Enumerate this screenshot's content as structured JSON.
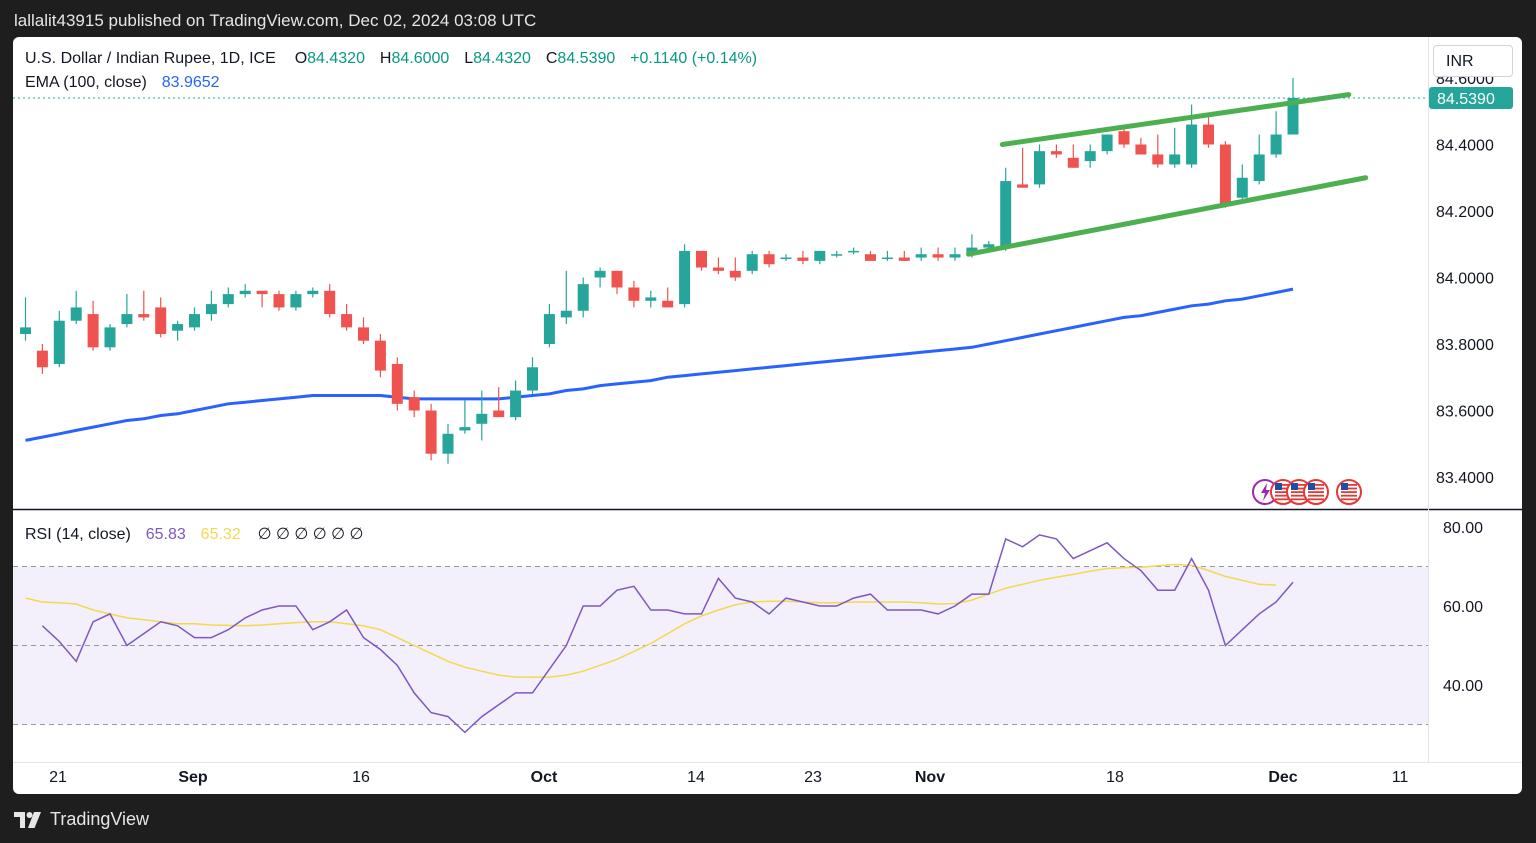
{
  "publisher_line": "lallalit43915 published on TradingView.com, Dec 02, 2024 03:08 UTC",
  "brand": "TradingView",
  "currency_button": "INR",
  "colors": {
    "up": "#26a69a",
    "down": "#ef5350",
    "ema": "#2962ff",
    "channel": "#4caf50",
    "rsi": "#7e57c2",
    "rsi_ma": "#f2d94e",
    "rsi_band": "#f3f0fb"
  },
  "legend": {
    "symbol": "U.S. Dollar / Indian Rupee, 1D, ICE",
    "o_label": "O",
    "o_value": "84.4320",
    "h_label": "H",
    "h_value": "84.6000",
    "l_label": "L",
    "l_value": "84.4320",
    "c_label": "C",
    "c_value": "84.5390",
    "change": "+0.1140 (+0.14%)",
    "ema_label": "EMA (100, close)",
    "ema_value": "83.9652"
  },
  "rsi_legend": {
    "label": "RSI (14, close)",
    "value": "65.83",
    "ma_value": "65.32",
    "extras": "∅ ∅ ∅ ∅ ∅ ∅"
  },
  "chart_data": [
    {
      "type": "candlestick",
      "title": "U.S. Dollar / Indian Rupee, 1D, ICE",
      "ylim": [
        83.35,
        84.67
      ],
      "y_ticks": [
        "84.6000",
        "84.4000",
        "84.2000",
        "84.0000",
        "83.8000",
        "83.6000",
        "83.4000"
      ],
      "last_price_label": "84.5390",
      "x_ticks": [
        "21",
        "Sep",
        "16",
        "Oct",
        "14",
        "23",
        "Nov",
        "18",
        "Dec",
        "11"
      ],
      "candles": [
        {
          "o": 83.83,
          "h": 83.94,
          "l": 83.81,
          "c": 83.85
        },
        {
          "o": 83.78,
          "h": 83.8,
          "l": 83.71,
          "c": 83.73
        },
        {
          "o": 83.74,
          "h": 83.9,
          "l": 83.73,
          "c": 83.87
        },
        {
          "o": 83.87,
          "h": 83.96,
          "l": 83.86,
          "c": 83.91
        },
        {
          "o": 83.89,
          "h": 83.93,
          "l": 83.78,
          "c": 83.79
        },
        {
          "o": 83.79,
          "h": 83.86,
          "l": 83.78,
          "c": 83.85
        },
        {
          "o": 83.86,
          "h": 83.95,
          "l": 83.85,
          "c": 83.89
        },
        {
          "o": 83.89,
          "h": 83.96,
          "l": 83.87,
          "c": 83.88
        },
        {
          "o": 83.91,
          "h": 83.94,
          "l": 83.82,
          "c": 83.83
        },
        {
          "o": 83.84,
          "h": 83.87,
          "l": 83.81,
          "c": 83.86
        },
        {
          "o": 83.85,
          "h": 83.91,
          "l": 83.84,
          "c": 83.89
        },
        {
          "o": 83.89,
          "h": 83.96,
          "l": 83.87,
          "c": 83.92
        },
        {
          "o": 83.92,
          "h": 83.97,
          "l": 83.91,
          "c": 83.95
        },
        {
          "o": 83.95,
          "h": 83.98,
          "l": 83.94,
          "c": 83.96
        },
        {
          "o": 83.96,
          "h": 83.96,
          "l": 83.91,
          "c": 83.95
        },
        {
          "o": 83.95,
          "h": 83.96,
          "l": 83.9,
          "c": 83.91
        },
        {
          "o": 83.91,
          "h": 83.96,
          "l": 83.9,
          "c": 83.95
        },
        {
          "o": 83.95,
          "h": 83.97,
          "l": 83.94,
          "c": 83.96
        },
        {
          "o": 83.96,
          "h": 83.98,
          "l": 83.88,
          "c": 83.89
        },
        {
          "o": 83.89,
          "h": 83.92,
          "l": 83.84,
          "c": 83.85
        },
        {
          "o": 83.85,
          "h": 83.88,
          "l": 83.8,
          "c": 83.81
        },
        {
          "o": 83.81,
          "h": 83.83,
          "l": 83.7,
          "c": 83.72
        },
        {
          "o": 83.74,
          "h": 83.76,
          "l": 83.6,
          "c": 83.62
        },
        {
          "o": 83.64,
          "h": 83.66,
          "l": 83.58,
          "c": 83.6
        },
        {
          "o": 83.6,
          "h": 83.62,
          "l": 83.45,
          "c": 83.47
        },
        {
          "o": 83.47,
          "h": 83.56,
          "l": 83.44,
          "c": 83.53
        },
        {
          "o": 83.54,
          "h": 83.63,
          "l": 83.53,
          "c": 83.55
        },
        {
          "o": 83.56,
          "h": 83.66,
          "l": 83.51,
          "c": 83.59
        },
        {
          "o": 83.6,
          "h": 83.67,
          "l": 83.58,
          "c": 83.58
        },
        {
          "o": 83.58,
          "h": 83.69,
          "l": 83.57,
          "c": 83.66
        },
        {
          "o": 83.66,
          "h": 83.76,
          "l": 83.65,
          "c": 83.73
        },
        {
          "o": 83.8,
          "h": 83.92,
          "l": 83.79,
          "c": 83.89
        },
        {
          "o": 83.88,
          "h": 84.02,
          "l": 83.86,
          "c": 83.9
        },
        {
          "o": 83.9,
          "h": 84.0,
          "l": 83.88,
          "c": 83.98
        },
        {
          "o": 84.0,
          "h": 84.03,
          "l": 83.97,
          "c": 84.02
        },
        {
          "o": 84.02,
          "h": 84.02,
          "l": 83.95,
          "c": 83.97
        },
        {
          "o": 83.97,
          "h": 83.99,
          "l": 83.91,
          "c": 83.93
        },
        {
          "o": 83.93,
          "h": 83.96,
          "l": 83.91,
          "c": 83.94
        },
        {
          "o": 83.93,
          "h": 83.97,
          "l": 83.91,
          "c": 83.91
        },
        {
          "o": 83.92,
          "h": 84.1,
          "l": 83.91,
          "c": 84.08
        },
        {
          "o": 84.08,
          "h": 84.08,
          "l": 84.02,
          "c": 84.03
        },
        {
          "o": 84.03,
          "h": 84.06,
          "l": 84.01,
          "c": 84.02
        },
        {
          "o": 84.02,
          "h": 84.06,
          "l": 83.99,
          "c": 84.0
        },
        {
          "o": 84.02,
          "h": 84.08,
          "l": 84.01,
          "c": 84.07
        },
        {
          "o": 84.07,
          "h": 84.08,
          "l": 84.03,
          "c": 84.04
        },
        {
          "o": 84.06,
          "h": 84.07,
          "l": 84.05,
          "c": 84.06
        },
        {
          "o": 84.06,
          "h": 84.08,
          "l": 84.04,
          "c": 84.05
        },
        {
          "o": 84.05,
          "h": 84.08,
          "l": 84.04,
          "c": 84.08
        },
        {
          "o": 84.07,
          "h": 84.08,
          "l": 84.06,
          "c": 84.07
        },
        {
          "o": 84.08,
          "h": 84.09,
          "l": 84.07,
          "c": 84.08
        },
        {
          "o": 84.07,
          "h": 84.08,
          "l": 84.05,
          "c": 84.05
        },
        {
          "o": 84.06,
          "h": 84.08,
          "l": 84.05,
          "c": 84.06
        },
        {
          "o": 84.06,
          "h": 84.08,
          "l": 84.05,
          "c": 84.05
        },
        {
          "o": 84.06,
          "h": 84.09,
          "l": 84.05,
          "c": 84.07
        },
        {
          "o": 84.07,
          "h": 84.09,
          "l": 84.05,
          "c": 84.06
        },
        {
          "o": 84.06,
          "h": 84.09,
          "l": 84.05,
          "c": 84.07
        },
        {
          "o": 84.07,
          "h": 84.13,
          "l": 84.06,
          "c": 84.09
        },
        {
          "o": 84.09,
          "h": 84.11,
          "l": 84.08,
          "c": 84.1
        },
        {
          "o": 84.09,
          "h": 84.33,
          "l": 84.08,
          "c": 84.29
        },
        {
          "o": 84.28,
          "h": 84.39,
          "l": 84.27,
          "c": 84.27
        },
        {
          "o": 84.28,
          "h": 84.4,
          "l": 84.27,
          "c": 84.38
        },
        {
          "o": 84.38,
          "h": 84.4,
          "l": 84.36,
          "c": 84.37
        },
        {
          "o": 84.36,
          "h": 84.4,
          "l": 84.33,
          "c": 84.33
        },
        {
          "o": 84.35,
          "h": 84.4,
          "l": 84.33,
          "c": 84.38
        },
        {
          "o": 84.38,
          "h": 84.43,
          "l": 84.37,
          "c": 84.43
        },
        {
          "o": 84.44,
          "h": 84.45,
          "l": 84.39,
          "c": 84.4
        },
        {
          "o": 84.4,
          "h": 84.42,
          "l": 84.37,
          "c": 84.37
        },
        {
          "o": 84.37,
          "h": 84.43,
          "l": 84.33,
          "c": 84.34
        },
        {
          "o": 84.34,
          "h": 84.45,
          "l": 84.33,
          "c": 84.37
        },
        {
          "o": 84.34,
          "h": 84.52,
          "l": 84.33,
          "c": 84.46
        },
        {
          "o": 84.46,
          "h": 84.49,
          "l": 84.39,
          "c": 84.4
        },
        {
          "o": 84.4,
          "h": 84.41,
          "l": 84.21,
          "c": 84.22
        },
        {
          "o": 84.24,
          "h": 84.34,
          "l": 84.23,
          "c": 84.3
        },
        {
          "o": 84.29,
          "h": 84.43,
          "l": 84.28,
          "c": 84.37
        },
        {
          "o": 84.37,
          "h": 84.5,
          "l": 84.36,
          "c": 84.43
        },
        {
          "o": 84.43,
          "h": 84.6,
          "l": 84.43,
          "c": 84.54
        }
      ],
      "ema_100": [
        83.51,
        83.52,
        83.53,
        83.54,
        83.55,
        83.56,
        83.57,
        83.575,
        83.585,
        83.59,
        83.6,
        83.61,
        83.62,
        83.625,
        83.63,
        83.635,
        83.64,
        83.645,
        83.645,
        83.645,
        83.645,
        83.645,
        83.64,
        83.635,
        83.635,
        83.635,
        83.635,
        83.635,
        83.635,
        83.64,
        83.645,
        83.65,
        83.66,
        83.665,
        83.675,
        83.68,
        83.685,
        83.69,
        83.7,
        83.705,
        83.71,
        83.715,
        83.72,
        83.725,
        83.73,
        83.735,
        83.74,
        83.745,
        83.75,
        83.755,
        83.76,
        83.765,
        83.77,
        83.775,
        83.78,
        83.785,
        83.79,
        83.8,
        83.81,
        83.82,
        83.83,
        83.84,
        83.85,
        83.86,
        83.87,
        83.88,
        83.885,
        83.895,
        83.905,
        83.915,
        83.92,
        83.93,
        83.935,
        83.945,
        83.955,
        83.965
      ],
      "channel": {
        "upper": [
          {
            "x": 57.8,
            "y": 84.4
          },
          {
            "x": 78.3,
            "y": 84.55
          }
        ],
        "lower": [
          {
            "x": 55.8,
            "y": 84.07
          },
          {
            "x": 79.3,
            "y": 84.3
          }
        ]
      },
      "event_icons": [
        "bolt-event",
        "us-flag",
        "us-flag",
        "us-flag",
        "us-flag"
      ]
    },
    {
      "type": "line",
      "title": "RSI (14, close)",
      "ylim": [
        27,
        83
      ],
      "y_ticks": [
        "80.00",
        "60.00",
        "40.00"
      ],
      "bands": {
        "upper": 70,
        "middle": 50,
        "lower": 30
      },
      "series": [
        {
          "name": "RSI",
          "values": [
            55,
            51,
            46,
            56,
            58,
            50,
            53,
            56,
            55,
            52,
            52,
            54,
            57,
            59,
            60,
            60,
            54,
            56,
            59,
            52,
            49,
            45,
            38,
            33,
            32,
            28,
            32,
            35,
            38,
            38,
            44,
            50,
            60,
            60,
            64,
            65,
            59,
            59,
            58,
            58,
            67,
            62,
            61,
            58,
            62,
            61,
            60,
            60,
            62,
            63,
            59,
            59,
            59,
            58,
            60,
            63,
            63,
            77,
            75,
            78,
            77,
            72,
            74,
            76,
            72,
            69,
            64,
            64,
            72,
            64,
            50,
            54,
            58,
            61,
            66
          ],
          "x_offset": 1
        },
        {
          "name": "RSI-MA",
          "values": [
            62,
            61,
            60.8,
            60.5,
            59,
            58,
            57,
            56.5,
            56,
            55.5,
            55.5,
            55.2,
            55.1,
            55,
            55.2,
            55.5,
            55.8,
            56,
            56,
            55.5,
            55,
            54,
            52,
            50,
            48,
            46,
            44.5,
            43.5,
            42.5,
            42,
            42,
            42,
            42.5,
            43.5,
            45,
            46.5,
            48.5,
            50.5,
            53,
            55.5,
            57.5,
            59,
            60.3,
            61,
            61.2,
            61.2,
            61,
            60.8,
            60.8,
            61,
            61,
            61,
            61,
            60.8,
            60.5,
            60.6,
            61.5,
            63,
            64.5,
            65.5,
            66.5,
            67.3,
            68,
            68.8,
            69.5,
            69.7,
            69.8,
            70.2,
            70.5,
            70.3,
            69,
            67.5,
            66.5,
            65.5,
            65.3
          ],
          "x_offset": 0
        }
      ]
    }
  ]
}
